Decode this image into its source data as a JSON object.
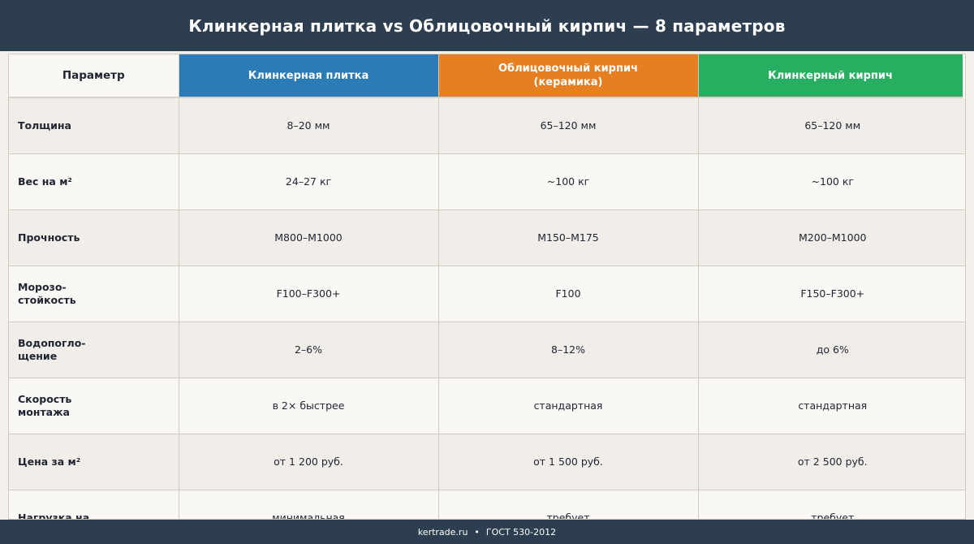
{
  "header": {
    "title": "Клинкерная плитка vs Облицовочный кирпич — 8 параметров"
  },
  "table": {
    "columns": [
      {
        "label": "Параметр",
        "color": "#faf8f5"
      },
      {
        "label": "Клинкерная плитка",
        "color": "#2b7bb7"
      },
      {
        "label": "Облицовочный кирпич\n(керамика)",
        "color": "#e67e22"
      },
      {
        "label": "Клинкерный кирпич",
        "color": "#27ae60"
      }
    ],
    "rows": [
      {
        "param": "Толщина",
        "tile": "8–20 мм",
        "brick": "65–120 мм",
        "clinker": "65–120 мм"
      },
      {
        "param": "Вес на м²",
        "tile": "24–27 кг",
        "brick": "~100 кг",
        "clinker": "~100 кг"
      },
      {
        "param": "Прочность",
        "tile": "М800–М1000",
        "brick": "М150–М175",
        "clinker": "М200–М1000"
      },
      {
        "param": "Морозо-\nстойкость",
        "tile": "F100–F300+",
        "brick": "F100",
        "clinker": "F150–F300+"
      },
      {
        "param": "Водопогло-\nщение",
        "tile": "2–6%",
        "brick": "8–12%",
        "clinker": "до 6%"
      },
      {
        "param": "Скорость\nмонтажа",
        "tile": "в 2× быстрее",
        "brick": "стандартная",
        "clinker": "стандартная"
      },
      {
        "param": "Цена за м²",
        "tile": "от 1 200 руб.",
        "brick": "от 1 500 руб.",
        "clinker": "от 2 500 руб."
      },
      {
        "param": "Нагрузка на",
        "tile": "минимальная",
        "brick": "требует",
        "clinker": "требует"
      }
    ]
  },
  "footer": {
    "site": "kertrade.ru",
    "separator": "•",
    "standard": "ГОСТ 530-2012"
  }
}
